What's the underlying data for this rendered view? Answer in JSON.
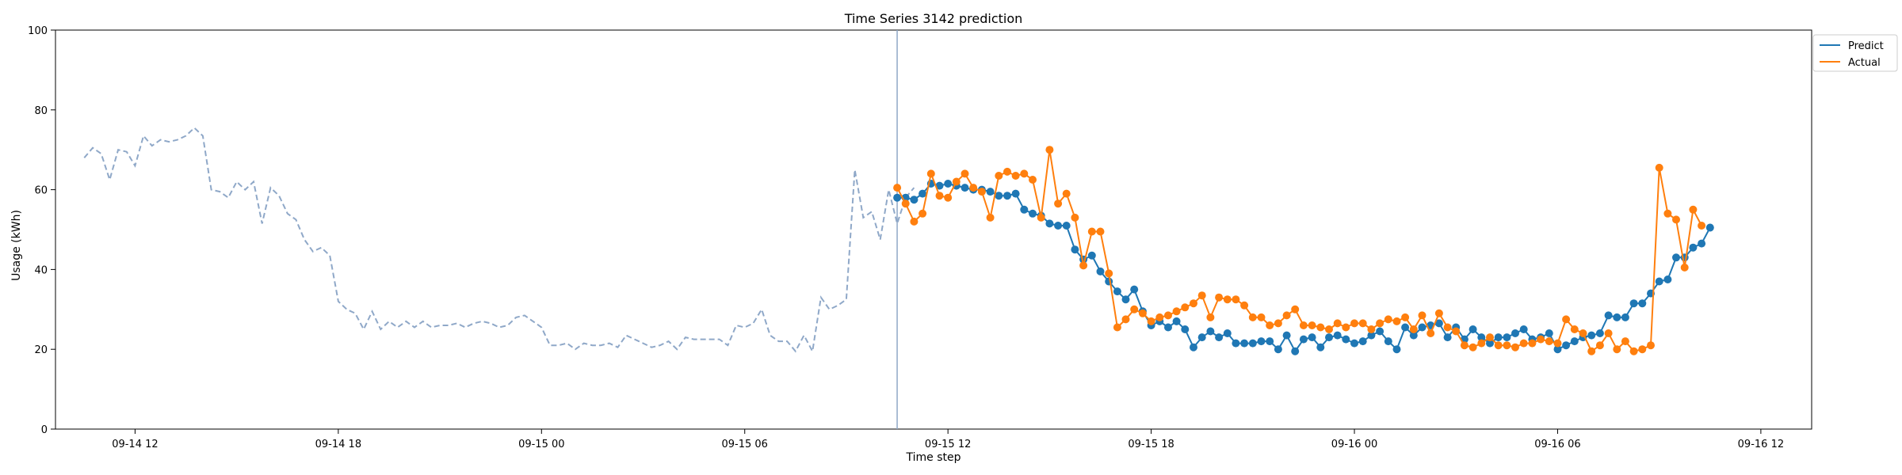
{
  "chart_data": {
    "type": "line",
    "title": "Time Series 3142 prediction",
    "xlabel": "Time step",
    "ylabel": "Usage (kWh)",
    "ylim": [
      0,
      100
    ],
    "xlim": [
      "09-14 09:39",
      "09-16 13:30"
    ],
    "x_ticks": [
      {
        "t": "09-14 12:00",
        "label": "09-14 12"
      },
      {
        "t": "09-14 18:00",
        "label": "09-14 18"
      },
      {
        "t": "09-15 00:00",
        "label": "09-15 00"
      },
      {
        "t": "09-15 06:00",
        "label": "09-15 06"
      },
      {
        "t": "09-15 12:00",
        "label": "09-15 12"
      },
      {
        "t": "09-15 18:00",
        "label": "09-15 18"
      },
      {
        "t": "09-16 00:00",
        "label": "09-16 00"
      },
      {
        "t": "09-16 06:00",
        "label": "09-16 06"
      },
      {
        "t": "09-16 12:00",
        "label": "09-16 12"
      }
    ],
    "y_ticks": [
      0,
      20,
      40,
      60,
      80,
      100
    ],
    "forecast_start": "09-15 10:30",
    "legend_position": "outside-top-right",
    "history": {
      "start": "09-14 10:30",
      "step_minutes": 15,
      "color": "#8fa8c8",
      "values": [
        68,
        70.5,
        69,
        62.5,
        70,
        69.5,
        66,
        73.5,
        71,
        72.5,
        72,
        72.5,
        73.5,
        75.5,
        73.5,
        60,
        59.5,
        58,
        62,
        60,
        62,
        51.5,
        60.5,
        58.5,
        54,
        52.5,
        47.5,
        44.5,
        45.5,
        43.5,
        32,
        30,
        29,
        25,
        29.5,
        25,
        27,
        25.5,
        27,
        25.5,
        27,
        25.5,
        26,
        26,
        26.5,
        25.5,
        26.5,
        27,
        26.5,
        25.5,
        26,
        28,
        28.5,
        27,
        25.5,
        21,
        21,
        21.5,
        20,
        21.5,
        21,
        21,
        21.5,
        20.5,
        23.5,
        22.5,
        21.5,
        20.5,
        21,
        22,
        20,
        23,
        22.5,
        22.5,
        22.5,
        22.5,
        21,
        26,
        25.5,
        26.5,
        30,
        23.5,
        22,
        22,
        19.5,
        23.5,
        19.5,
        33,
        30,
        31,
        32.5,
        65,
        53,
        54.5,
        47.5,
        60,
        51.5,
        58,
        60.5
      ]
    },
    "series": [
      {
        "name": "Predict",
        "color": "#1f77b4",
        "start": "09-15 10:30",
        "step_minutes": 15,
        "values": [
          58,
          58,
          57.5,
          59,
          61.5,
          61,
          61.5,
          61,
          60.5,
          60,
          60,
          59.5,
          58.5,
          58.5,
          59,
          55,
          54,
          53.5,
          51.5,
          51,
          51,
          45,
          42.5,
          43.5,
          39.5,
          37,
          34.5,
          32.5,
          35,
          29.5,
          26,
          27,
          25.5,
          27,
          25,
          20.5,
          23,
          24.5,
          23,
          24,
          21.5,
          21.5,
          21.5,
          22,
          22,
          20,
          23.5,
          19.5,
          22.5,
          23,
          20.5,
          23,
          23.5,
          22.5,
          21.5,
          22,
          23.5,
          24.5,
          22,
          20,
          25.5,
          23.5,
          25.5,
          26,
          26.5,
          23,
          25.5,
          22.5,
          25,
          23,
          21.5,
          23,
          23,
          24,
          25,
          22.5,
          23,
          24,
          20,
          21,
          22,
          23,
          23.5,
          24,
          28.5,
          28,
          28,
          31.5,
          31.5,
          34,
          37,
          37.5,
          43,
          43,
          45.5,
          46.5,
          50.5
        ]
      },
      {
        "name": "Actual",
        "color": "#ff7f0e",
        "start": "09-15 10:30",
        "step_minutes": 15,
        "values": [
          60.5,
          56.5,
          52,
          54,
          64,
          58.5,
          58,
          62,
          64,
          60.5,
          59.5,
          53,
          63.5,
          64.5,
          63.5,
          64,
          62.5,
          53,
          70,
          56.5,
          59,
          53,
          41,
          49.5,
          49.5,
          39,
          25.5,
          27.5,
          30,
          29,
          27,
          28,
          28.5,
          29.5,
          30.5,
          31.5,
          33.5,
          28,
          33,
          32.5,
          32.5,
          31,
          28,
          28,
          26,
          26.5,
          28.5,
          30,
          26,
          26,
          25.5,
          25,
          26.5,
          25.5,
          26.5,
          26.5,
          25,
          26.5,
          27.5,
          27,
          28,
          25,
          28.5,
          24,
          29,
          25.5,
          24.5,
          21,
          20.5,
          21.5,
          23,
          21,
          21,
          20.5,
          21.5,
          21.5,
          22.5,
          22,
          21.5,
          27.5,
          25,
          24,
          19.5,
          21,
          24,
          20,
          22,
          19.5,
          20,
          21,
          65.5,
          54,
          52.5,
          40.5,
          55,
          51
        ]
      }
    ]
  }
}
